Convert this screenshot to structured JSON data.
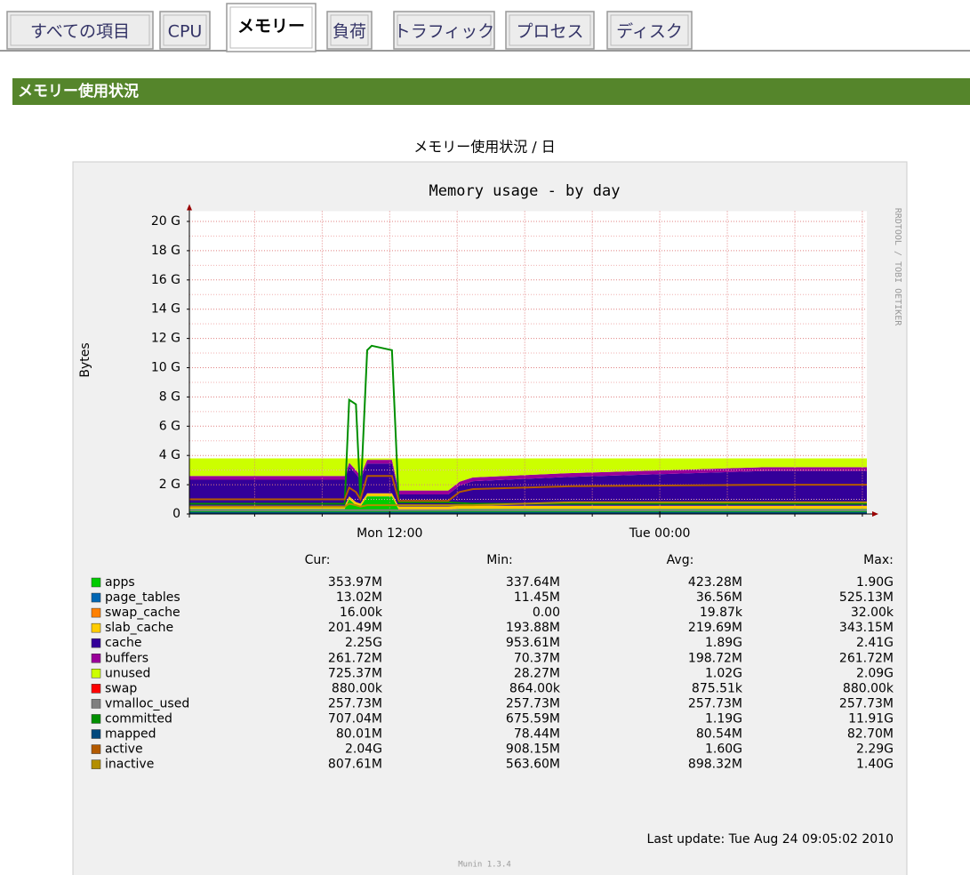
{
  "tabs": {
    "items": [
      "すべての項目",
      "CPU",
      "メモリー",
      "負荷",
      "トラフィック",
      "プロセス",
      "ディスク"
    ],
    "active": 2
  },
  "section_title": "メモリー使用状況",
  "graph_caption": "メモリー使用状況 / 日",
  "chart_data": {
    "type": "area",
    "title": "Memory usage - by day",
    "y_label": "Bytes",
    "watermark": "RRDTOOL / TOBI OETIKER",
    "x": [
      0,
      6.9,
      7.1,
      7.4,
      7.6,
      7.9,
      8.1,
      9.0,
      9.3,
      11.5,
      12.0,
      12.6,
      17.0,
      25.6,
      30.1
    ],
    "xlim": [
      0,
      30.1
    ],
    "xticks": [
      {
        "value": 8.9,
        "label": "Mon 12:00"
      },
      {
        "value": 20.9,
        "label": "Tue 00:00"
      }
    ],
    "xgrid": [
      2.9,
      5.9,
      8.9,
      11.9,
      14.9,
      17.9,
      20.9,
      23.9,
      26.9,
      29.9
    ],
    "ylim": [
      0,
      20.7
    ],
    "yticks": [
      {
        "value": 0,
        "label": "0"
      },
      {
        "value": 2,
        "label": "2 G"
      },
      {
        "value": 4,
        "label": "4 G"
      },
      {
        "value": 6,
        "label": "6 G"
      },
      {
        "value": 8,
        "label": "8 G"
      },
      {
        "value": 10,
        "label": "10 G"
      },
      {
        "value": 12,
        "label": "12 G"
      },
      {
        "value": 14,
        "label": "14 G"
      },
      {
        "value": 16,
        "label": "16 G"
      },
      {
        "value": 18,
        "label": "18 G"
      },
      {
        "value": 20,
        "label": "20 G"
      }
    ],
    "yminor": [
      1,
      3,
      5,
      7,
      9,
      11,
      13,
      15,
      17,
      19
    ],
    "grid": true,
    "series": [
      {
        "name": "apps",
        "color": "#00cc00",
        "kind": "area",
        "values": [
          0.35,
          0.35,
          1.0,
          0.6,
          0.5,
          1.2,
          1.2,
          1.2,
          0.3,
          0.3,
          0.35,
          0.35,
          0.35,
          0.35,
          0.35
        ]
      },
      {
        "name": "page_tables",
        "color": "#0066b3",
        "kind": "area",
        "values": [
          0.01,
          0.01,
          0.01,
          0.01,
          0.01,
          0.01,
          0.01,
          0.01,
          0.01,
          0.01,
          0.01,
          0.01,
          0.01,
          0.01,
          0.01
        ]
      },
      {
        "name": "swap_cache",
        "color": "#ff8000",
        "kind": "area",
        "values": [
          2e-05,
          2e-05,
          2e-05,
          2e-05,
          2e-05,
          2e-05,
          2e-05,
          2e-05,
          2e-05,
          2e-05,
          2e-05,
          2e-05,
          2e-05,
          2e-05,
          2e-05
        ]
      },
      {
        "name": "slab_cache",
        "color": "#ffcc00",
        "kind": "area",
        "values": [
          0.2,
          0.2,
          0.2,
          0.2,
          0.2,
          0.2,
          0.2,
          0.2,
          0.2,
          0.2,
          0.2,
          0.2,
          0.2,
          0.2,
          0.2
        ]
      },
      {
        "name": "cache",
        "color": "#330099",
        "kind": "area",
        "values": [
          1.78,
          1.78,
          2.03,
          1.93,
          1.63,
          2.03,
          2.03,
          2.03,
          0.83,
          0.83,
          1.38,
          1.68,
          1.98,
          2.38,
          2.38
        ]
      },
      {
        "name": "buffers",
        "color": "#990099",
        "kind": "area",
        "values": [
          0.26,
          0.26,
          0.26,
          0.26,
          0.26,
          0.26,
          0.26,
          0.26,
          0.26,
          0.26,
          0.26,
          0.26,
          0.26,
          0.26,
          0.26
        ]
      },
      {
        "name": "unused",
        "color": "#ccff00",
        "kind": "area",
        "values": [
          1.2,
          1.2,
          0.3,
          0.8,
          1.2,
          0.1,
          0.1,
          0.1,
          2.2,
          2.2,
          1.6,
          1.3,
          1.0,
          0.6,
          0.6
        ]
      },
      {
        "name": "swap",
        "color": "#ff0000",
        "kind": "area",
        "values": [
          0.0009,
          0.0009,
          0.0009,
          0.0009,
          0.0009,
          0.0009,
          0.0009,
          0.0009,
          0.0009,
          0.0009,
          0.0009,
          0.0009,
          0.0009,
          0.0009,
          0.0009
        ]
      },
      {
        "name": "vmalloc_used",
        "color": "#808080",
        "kind": "line",
        "values": [
          0.26,
          0.26,
          0.26,
          0.26,
          0.26,
          0.26,
          0.26,
          0.26,
          0.26,
          0.26,
          0.26,
          0.26,
          0.26,
          0.26,
          0.26
        ]
      },
      {
        "name": "committed",
        "color": "#008f00",
        "kind": "line",
        "values": [
          0.7,
          0.7,
          7.8,
          7.5,
          1.0,
          11.2,
          11.5,
          11.2,
          0.8,
          0.8,
          0.75,
          0.7,
          0.7,
          0.7,
          0.7
        ]
      },
      {
        "name": "mapped",
        "color": "#00487d",
        "kind": "line",
        "values": [
          0.08,
          0.08,
          0.08,
          0.08,
          0.08,
          0.08,
          0.08,
          0.08,
          0.08,
          0.08,
          0.08,
          0.08,
          0.08,
          0.08,
          0.08
        ]
      },
      {
        "name": "active",
        "color": "#b35a00",
        "kind": "line",
        "values": [
          1.0,
          1.0,
          1.8,
          1.5,
          1.0,
          2.6,
          2.6,
          2.6,
          0.9,
          0.9,
          1.5,
          1.7,
          1.9,
          2.0,
          2.0
        ]
      },
      {
        "name": "inactive",
        "color": "#b38f00",
        "kind": "line",
        "values": [
          0.5,
          0.5,
          0.7,
          0.6,
          0.5,
          0.6,
          0.6,
          0.6,
          0.6,
          0.6,
          0.6,
          0.6,
          0.8,
          0.8,
          0.8
        ]
      }
    ],
    "legend_table": {
      "headers": [
        "Cur:",
        "Min:",
        "Avg:",
        "Max:"
      ],
      "rows": [
        [
          "353.97M",
          "337.64M",
          "423.28M",
          "1.90G"
        ],
        [
          "13.02M",
          "11.45M",
          "36.56M",
          "525.13M"
        ],
        [
          "16.00k",
          "0.00",
          "19.87k",
          "32.00k"
        ],
        [
          "201.49M",
          "193.88M",
          "219.69M",
          "343.15M"
        ],
        [
          "2.25G",
          "953.61M",
          "1.89G",
          "2.41G"
        ],
        [
          "261.72M",
          "70.37M",
          "198.72M",
          "261.72M"
        ],
        [
          "725.37M",
          "28.27M",
          "1.02G",
          "2.09G"
        ],
        [
          "880.00k",
          "864.00k",
          "875.51k",
          "880.00k"
        ],
        [
          "257.73M",
          "257.73M",
          "257.73M",
          "257.73M"
        ],
        [
          "707.04M",
          "675.59M",
          "1.19G",
          "11.91G"
        ],
        [
          "80.01M",
          "78.44M",
          "80.54M",
          "82.70M"
        ],
        [
          "2.04G",
          "908.15M",
          "1.60G",
          "2.29G"
        ],
        [
          "807.61M",
          "563.60M",
          "898.32M",
          "1.40G"
        ]
      ]
    },
    "last_update": "Last update: Tue Aug 24 09:05:02 2010",
    "footer": "Munin 1.3.4"
  }
}
